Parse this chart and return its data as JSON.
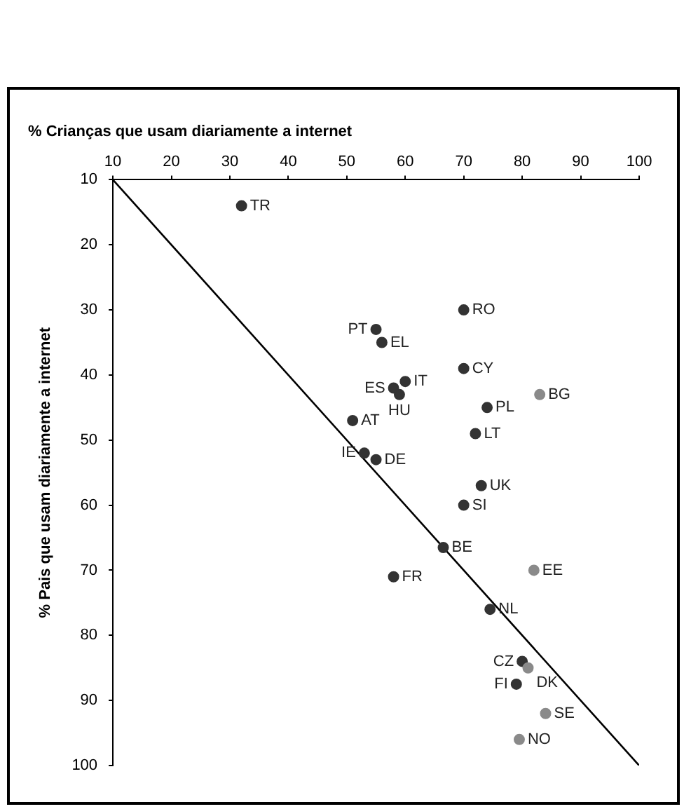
{
  "chart_data": {
    "type": "scatter",
    "title": "% Crianças que usam diariamente  a internet",
    "ylabel": "% Pais que usam diariamente a internet",
    "xlim": [
      10,
      100
    ],
    "xticks": [
      10,
      20,
      30,
      40,
      50,
      60,
      70,
      80,
      90,
      100
    ],
    "ylim": [
      100,
      10
    ],
    "yticks": [
      10,
      20,
      30,
      40,
      50,
      60,
      70,
      80,
      90,
      100
    ],
    "grid": false,
    "legend": false,
    "marker": "circle",
    "series": [
      {
        "x": [
          32,
          70,
          55,
          56,
          70,
          60,
          58,
          59,
          83,
          74,
          72,
          51,
          53,
          55,
          73,
          70,
          66.5,
          82,
          58,
          74.5,
          80,
          81,
          79,
          84,
          79.5
        ],
        "values": [
          14,
          30,
          33,
          35,
          39,
          41,
          42,
          43,
          43,
          45,
          49,
          47,
          52,
          53,
          57,
          60,
          66.5,
          70,
          71,
          76,
          84,
          85,
          87.5,
          92,
          96
        ],
        "colors": [
          "#333333",
          "#333333",
          "#333333",
          "#333333",
          "#333333",
          "#333333",
          "#333333",
          "#333333",
          "#8a8a8a",
          "#333333",
          "#333333",
          "#333333",
          "#333333",
          "#333333",
          "#333333",
          "#333333",
          "#333333",
          "#8a8a8a",
          "#333333",
          "#333333",
          "#333333",
          "#8a8a8a",
          "#333333",
          "#8a8a8a",
          "#8a8a8a"
        ]
      },
      {
        "type": "line",
        "x": [
          10,
          100
        ],
        "values": [
          10,
          100
        ],
        "color": "#000000",
        "marker": "none",
        "line_style": "solid"
      }
    ],
    "annotations": [
      {
        "text": "TR",
        "x": 32,
        "y": 14
      },
      {
        "text": "RO",
        "x": 70,
        "y": 30
      },
      {
        "text": "PT",
        "x": 55,
        "y": 33
      },
      {
        "text": "EL",
        "x": 56,
        "y": 35
      },
      {
        "text": "CY",
        "x": 70,
        "y": 39
      },
      {
        "text": "IT",
        "x": 60,
        "y": 41
      },
      {
        "text": "ES",
        "x": 58,
        "y": 42
      },
      {
        "text": "HU",
        "x": 59,
        "y": 43
      },
      {
        "text": "BG",
        "x": 83,
        "y": 43
      },
      {
        "text": "PL",
        "x": 74,
        "y": 45
      },
      {
        "text": "LT",
        "x": 72,
        "y": 49
      },
      {
        "text": "AT",
        "x": 51,
        "y": 47
      },
      {
        "text": "IE",
        "x": 53,
        "y": 52
      },
      {
        "text": "DE",
        "x": 55,
        "y": 53
      },
      {
        "text": "UK",
        "x": 73,
        "y": 57
      },
      {
        "text": "SI",
        "x": 70,
        "y": 60
      },
      {
        "text": "BE",
        "x": 66.5,
        "y": 66.5
      },
      {
        "text": "EE",
        "x": 82,
        "y": 70
      },
      {
        "text": "FR",
        "x": 58,
        "y": 71
      },
      {
        "text": "NL",
        "x": 74.5,
        "y": 76
      },
      {
        "text": "CZ",
        "x": 80,
        "y": 84
      },
      {
        "text": "DK",
        "x": 81,
        "y": 85
      },
      {
        "text": "FI",
        "x": 79,
        "y": 87.5
      },
      {
        "text": "SE",
        "x": 84,
        "y": 92
      },
      {
        "text": "NO",
        "x": 79.5,
        "y": 96
      }
    ]
  }
}
